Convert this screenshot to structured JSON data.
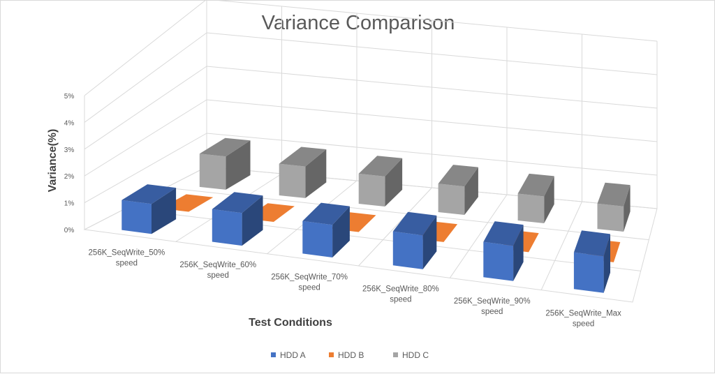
{
  "chart_data": {
    "type": "bar",
    "variant": "3d-column",
    "title": "Variance Comparison",
    "xlabel": "Test Conditions",
    "ylabel": "Variance(%)",
    "ylim": [
      0,
      5
    ],
    "yticks": [
      "0%",
      "1%",
      "2%",
      "3%",
      "4%",
      "5%"
    ],
    "grid": true,
    "legend_position": "bottom",
    "categories": [
      [
        "256K_SeqWrite_50%",
        "speed"
      ],
      [
        "256K_SeqWrite_60%",
        "speed"
      ],
      [
        "256K_SeqWrite_70%",
        "speed"
      ],
      [
        "256K_SeqWrite_80%",
        "speed"
      ],
      [
        "256K_SeqWrite_90%",
        "speed"
      ],
      [
        "256K_SeqWrite_Max",
        "speed"
      ]
    ],
    "series": [
      {
        "name": "HDD A",
        "color": "#4472c4",
        "values": [
          1.1,
          1.2,
          1.2,
          1.25,
          1.3,
          1.35
        ]
      },
      {
        "name": "HDD B",
        "color": "#ed7d31",
        "values": [
          0,
          0,
          0,
          0,
          0,
          0
        ]
      },
      {
        "name": "HDD C",
        "color": "#a5a5a5",
        "values": [
          1.05,
          1.0,
          0.95,
          0.9,
          0.85,
          0.8
        ]
      }
    ]
  }
}
